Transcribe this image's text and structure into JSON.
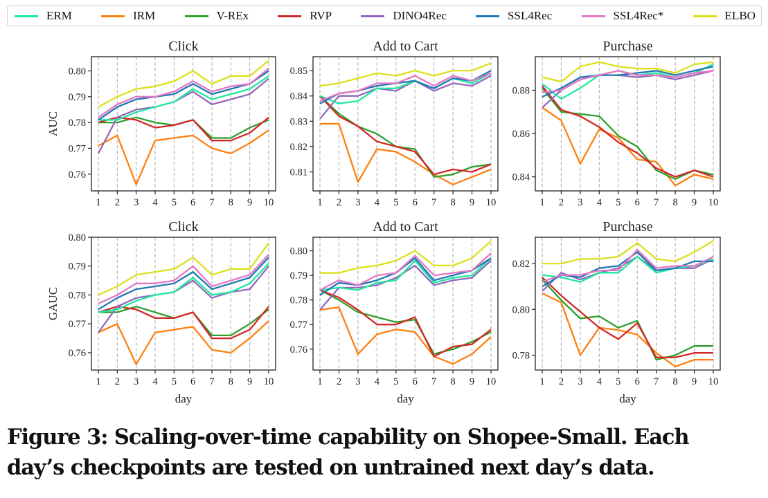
{
  "legend": {
    "items": [
      {
        "name": "ERM",
        "color": "#1de9a0"
      },
      {
        "name": "IRM",
        "color": "#ff7f0e"
      },
      {
        "name": "V-REx",
        "color": "#2ca02c"
      },
      {
        "name": "RVP",
        "color": "#d62728"
      },
      {
        "name": "DINO4Rec",
        "color": "#9467bd"
      },
      {
        "name": "SSL4Rec",
        "color": "#1f77b4"
      },
      {
        "name": "SSL4Rec*",
        "color": "#e377c2"
      },
      {
        "name": "ELBO",
        "color": "#dbe01a"
      }
    ]
  },
  "caption": {
    "line1": "Figure 3: Scaling-over-time capability on Shopee-Small. Each",
    "line2": "day’s checkpoints are tested on untrained next day’s data."
  },
  "chart_data": [
    {
      "type": "line",
      "title": "Click",
      "ylabel": "AUC",
      "xlabel": "",
      "x": [
        1,
        2,
        3,
        4,
        5,
        6,
        7,
        8,
        9,
        10
      ],
      "ylim": [
        0.7535,
        0.8055
      ],
      "yticks": [
        "0.76",
        "0.77",
        "0.78",
        "0.79",
        "0.80"
      ],
      "yticks_values": [
        0.76,
        0.77,
        0.78,
        0.79,
        0.8
      ],
      "grid": "vertical-dashed",
      "series": [
        {
          "name": "IRM",
          "values": [
            0.771,
            0.775,
            0.756,
            0.773,
            0.774,
            0.775,
            0.77,
            0.768,
            0.772,
            0.777
          ]
        },
        {
          "name": "V-REx",
          "values": [
            0.78,
            0.78,
            0.782,
            0.78,
            0.779,
            0.781,
            0.774,
            0.774,
            0.778,
            0.781
          ]
        },
        {
          "name": "RVP",
          "values": [
            0.78,
            0.782,
            0.781,
            0.778,
            0.779,
            0.781,
            0.773,
            0.773,
            0.776,
            0.782
          ]
        },
        {
          "name": "DINO4Rec",
          "values": [
            0.768,
            0.782,
            0.785,
            0.786,
            0.788,
            0.792,
            0.787,
            0.789,
            0.791,
            0.797
          ]
        },
        {
          "name": "ERM",
          "values": [
            0.781,
            0.781,
            0.784,
            0.786,
            0.788,
            0.793,
            0.789,
            0.791,
            0.793,
            0.798
          ]
        },
        {
          "name": "SSL4Rec",
          "values": [
            0.781,
            0.786,
            0.789,
            0.79,
            0.791,
            0.795,
            0.791,
            0.793,
            0.795,
            0.8
          ]
        },
        {
          "name": "SSL4Rec*",
          "values": [
            0.782,
            0.787,
            0.79,
            0.79,
            0.792,
            0.796,
            0.792,
            0.794,
            0.795,
            0.801
          ]
        },
        {
          "name": "ELBO",
          "values": [
            0.786,
            0.79,
            0.793,
            0.794,
            0.796,
            0.8,
            0.795,
            0.798,
            0.798,
            0.804
          ]
        }
      ]
    },
    {
      "type": "line",
      "title": "Add to Cart",
      "ylabel": "",
      "xlabel": "",
      "x": [
        1,
        2,
        3,
        4,
        5,
        6,
        7,
        8,
        9,
        10
      ],
      "ylim": [
        0.8025,
        0.8555
      ],
      "yticks": [
        "0.81",
        "0.82",
        "0.83",
        "0.84",
        "0.85"
      ],
      "yticks_values": [
        0.81,
        0.82,
        0.83,
        0.84,
        0.85
      ],
      "grid": "vertical-dashed",
      "series": [
        {
          "name": "IRM",
          "values": [
            0.829,
            0.829,
            0.806,
            0.819,
            0.818,
            0.814,
            0.809,
            0.805,
            0.808,
            0.811
          ]
        },
        {
          "name": "V-REx",
          "values": [
            0.84,
            0.833,
            0.828,
            0.825,
            0.82,
            0.819,
            0.808,
            0.809,
            0.812,
            0.813
          ]
        },
        {
          "name": "RVP",
          "values": [
            0.84,
            0.832,
            0.828,
            0.822,
            0.82,
            0.818,
            0.809,
            0.811,
            0.81,
            0.813
          ]
        },
        {
          "name": "DINO4Rec",
          "values": [
            0.831,
            0.84,
            0.84,
            0.843,
            0.842,
            0.846,
            0.842,
            0.845,
            0.844,
            0.848
          ]
        },
        {
          "name": "ERM",
          "values": [
            0.84,
            0.837,
            0.838,
            0.843,
            0.843,
            0.846,
            0.843,
            0.847,
            0.845,
            0.849
          ]
        },
        {
          "name": "SSL4Rec",
          "values": [
            0.837,
            0.841,
            0.842,
            0.844,
            0.845,
            0.846,
            0.843,
            0.847,
            0.846,
            0.85
          ]
        },
        {
          "name": "SSL4Rec*",
          "values": [
            0.838,
            0.841,
            0.842,
            0.845,
            0.845,
            0.848,
            0.844,
            0.848,
            0.846,
            0.849
          ]
        },
        {
          "name": "ELBO",
          "values": [
            0.844,
            0.845,
            0.847,
            0.849,
            0.848,
            0.85,
            0.848,
            0.85,
            0.85,
            0.853
          ]
        }
      ]
    },
    {
      "type": "line",
      "title": "Purchase",
      "ylabel": "",
      "xlabel": "",
      "x": [
        1,
        2,
        3,
        4,
        5,
        6,
        7,
        8,
        9,
        10
      ],
      "ylim": [
        0.8335,
        0.8955
      ],
      "yticks": [
        "0.84",
        "0.86",
        "0.88"
      ],
      "yticks_values": [
        0.84,
        0.86,
        0.88
      ],
      "grid": "vertical-dashed",
      "series": [
        {
          "name": "IRM",
          "values": [
            0.872,
            0.866,
            0.846,
            0.862,
            0.858,
            0.848,
            0.847,
            0.836,
            0.841,
            0.839
          ]
        },
        {
          "name": "V-REx",
          "values": [
            0.881,
            0.87,
            0.869,
            0.868,
            0.859,
            0.854,
            0.843,
            0.839,
            0.843,
            0.841
          ]
        },
        {
          "name": "RVP",
          "values": [
            0.882,
            0.871,
            0.868,
            0.863,
            0.856,
            0.851,
            0.844,
            0.84,
            0.843,
            0.84
          ]
        },
        {
          "name": "DINO4Rec",
          "values": [
            0.872,
            0.88,
            0.885,
            0.887,
            0.887,
            0.886,
            0.887,
            0.885,
            0.887,
            0.889
          ]
        },
        {
          "name": "ERM",
          "values": [
            0.883,
            0.876,
            0.881,
            0.887,
            0.889,
            0.887,
            0.888,
            0.886,
            0.888,
            0.892
          ]
        },
        {
          "name": "SSL4Rec",
          "values": [
            0.877,
            0.881,
            0.886,
            0.887,
            0.887,
            0.888,
            0.889,
            0.887,
            0.889,
            0.891
          ]
        },
        {
          "name": "SSL4Rec*",
          "values": [
            0.879,
            0.88,
            0.885,
            0.887,
            0.889,
            0.887,
            0.887,
            0.886,
            0.888,
            0.889
          ]
        },
        {
          "name": "ELBO",
          "values": [
            0.886,
            0.884,
            0.891,
            0.893,
            0.891,
            0.89,
            0.89,
            0.888,
            0.892,
            0.893
          ]
        }
      ]
    },
    {
      "type": "line",
      "title": "Click",
      "ylabel": "GAUC",
      "xlabel": "day",
      "x": [
        1,
        2,
        3,
        4,
        5,
        6,
        7,
        8,
        9,
        10
      ],
      "ylim": [
        0.754,
        0.8
      ],
      "yticks": [
        "0.76",
        "0.77",
        "0.78",
        "0.79",
        "0.80"
      ],
      "yticks_values": [
        0.76,
        0.77,
        0.78,
        0.79,
        0.8
      ],
      "grid": "vertical-dashed",
      "series": [
        {
          "name": "IRM",
          "values": [
            0.767,
            0.77,
            0.756,
            0.767,
            0.768,
            0.769,
            0.761,
            0.76,
            0.765,
            0.771
          ]
        },
        {
          "name": "V-REx",
          "values": [
            0.774,
            0.774,
            0.776,
            0.774,
            0.772,
            0.774,
            0.766,
            0.766,
            0.77,
            0.775
          ]
        },
        {
          "name": "RVP",
          "values": [
            0.774,
            0.776,
            0.775,
            0.772,
            0.772,
            0.774,
            0.765,
            0.765,
            0.768,
            0.776
          ]
        },
        {
          "name": "DINO4Rec",
          "values": [
            0.767,
            0.776,
            0.779,
            0.78,
            0.781,
            0.785,
            0.779,
            0.781,
            0.782,
            0.79
          ]
        },
        {
          "name": "ERM",
          "values": [
            0.774,
            0.775,
            0.778,
            0.78,
            0.781,
            0.786,
            0.78,
            0.781,
            0.784,
            0.791
          ]
        },
        {
          "name": "SSL4Rec",
          "values": [
            0.775,
            0.779,
            0.782,
            0.783,
            0.784,
            0.788,
            0.782,
            0.784,
            0.786,
            0.793
          ]
        },
        {
          "name": "SSL4Rec*",
          "values": [
            0.777,
            0.78,
            0.784,
            0.784,
            0.785,
            0.79,
            0.783,
            0.785,
            0.787,
            0.794
          ]
        },
        {
          "name": "ELBO",
          "values": [
            0.78,
            0.783,
            0.787,
            0.788,
            0.789,
            0.793,
            0.787,
            0.789,
            0.789,
            0.798
          ]
        }
      ]
    },
    {
      "type": "line",
      "title": "Add to Cart",
      "ylabel": "",
      "xlabel": "day",
      "x": [
        1,
        2,
        3,
        4,
        5,
        6,
        7,
        8,
        9,
        10
      ],
      "ylim": [
        0.7515,
        0.8055
      ],
      "yticks": [
        "0.76",
        "0.77",
        "0.78",
        "0.79",
        "0.80"
      ],
      "yticks_values": [
        0.76,
        0.77,
        0.78,
        0.79,
        0.8
      ],
      "grid": "vertical-dashed",
      "series": [
        {
          "name": "IRM",
          "values": [
            0.776,
            0.777,
            0.758,
            0.766,
            0.768,
            0.767,
            0.757,
            0.754,
            0.758,
            0.765
          ]
        },
        {
          "name": "V-REx",
          "values": [
            0.784,
            0.78,
            0.775,
            0.773,
            0.771,
            0.772,
            0.758,
            0.76,
            0.763,
            0.767
          ]
        },
        {
          "name": "RVP",
          "values": [
            0.784,
            0.781,
            0.776,
            0.77,
            0.77,
            0.773,
            0.757,
            0.761,
            0.762,
            0.768
          ]
        },
        {
          "name": "DINO4Rec",
          "values": [
            0.776,
            0.785,
            0.785,
            0.786,
            0.789,
            0.794,
            0.786,
            0.788,
            0.789,
            0.796
          ]
        },
        {
          "name": "ERM",
          "values": [
            0.784,
            0.785,
            0.784,
            0.787,
            0.788,
            0.796,
            0.787,
            0.789,
            0.79,
            0.797
          ]
        },
        {
          "name": "SSL4Rec",
          "values": [
            0.782,
            0.787,
            0.786,
            0.788,
            0.791,
            0.797,
            0.788,
            0.79,
            0.792,
            0.797
          ]
        },
        {
          "name": "SSL4Rec*",
          "values": [
            0.784,
            0.788,
            0.786,
            0.79,
            0.791,
            0.798,
            0.79,
            0.791,
            0.792,
            0.799
          ]
        },
        {
          "name": "ELBO",
          "values": [
            0.791,
            0.791,
            0.793,
            0.794,
            0.796,
            0.8,
            0.794,
            0.794,
            0.797,
            0.804
          ]
        }
      ]
    },
    {
      "type": "line",
      "title": "Purchase",
      "ylabel": "",
      "xlabel": "day",
      "x": [
        1,
        2,
        3,
        4,
        5,
        6,
        7,
        8,
        9,
        10
      ],
      "ylim": [
        0.7735,
        0.8315
      ],
      "yticks": [
        "0.78",
        "0.80",
        "0.82"
      ],
      "yticks_values": [
        0.78,
        0.8,
        0.82
      ],
      "grid": "vertical-dashed",
      "series": [
        {
          "name": "IRM",
          "values": [
            0.807,
            0.803,
            0.78,
            0.792,
            0.791,
            0.789,
            0.781,
            0.775,
            0.778,
            0.778
          ]
        },
        {
          "name": "V-REx",
          "values": [
            0.813,
            0.804,
            0.796,
            0.797,
            0.792,
            0.795,
            0.778,
            0.78,
            0.784,
            0.784
          ]
        },
        {
          "name": "RVP",
          "values": [
            0.814,
            0.806,
            0.799,
            0.792,
            0.787,
            0.794,
            0.779,
            0.779,
            0.781,
            0.781
          ]
        },
        {
          "name": "DINO4Rec",
          "values": [
            0.808,
            0.816,
            0.813,
            0.816,
            0.818,
            0.823,
            0.817,
            0.818,
            0.818,
            0.822
          ]
        },
        {
          "name": "ERM",
          "values": [
            0.815,
            0.814,
            0.812,
            0.816,
            0.816,
            0.823,
            0.816,
            0.818,
            0.819,
            0.822
          ]
        },
        {
          "name": "SSL4Rec",
          "values": [
            0.81,
            0.815,
            0.814,
            0.818,
            0.819,
            0.825,
            0.817,
            0.818,
            0.821,
            0.821
          ]
        },
        {
          "name": "SSL4Rec*",
          "values": [
            0.812,
            0.815,
            0.815,
            0.817,
            0.817,
            0.826,
            0.818,
            0.819,
            0.819,
            0.823
          ]
        },
        {
          "name": "ELBO",
          "values": [
            0.82,
            0.82,
            0.822,
            0.822,
            0.823,
            0.829,
            0.822,
            0.821,
            0.825,
            0.83
          ]
        }
      ]
    }
  ]
}
